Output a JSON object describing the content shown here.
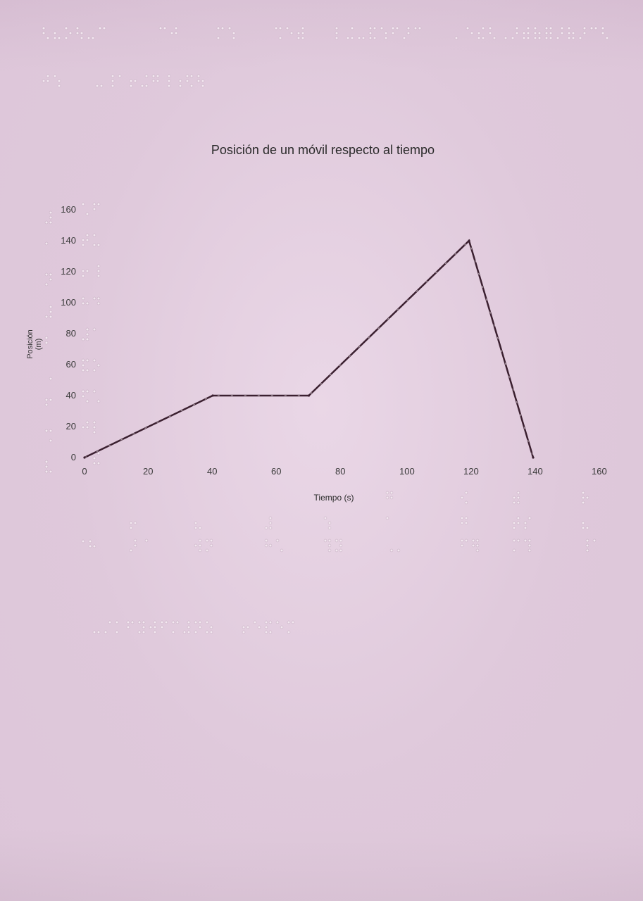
{
  "colors": {
    "paper": "#ddc6d9",
    "line": "#3b2030",
    "text": "#2a2a2a",
    "braille_dot": "#f4e8f1"
  },
  "chart_data": {
    "type": "line",
    "title": "Posición de un móvil respecto al tiempo",
    "xlabel": "Tiempo (s)",
    "ylabel": "Posición (m)",
    "xlim": [
      0,
      160
    ],
    "ylim": [
      0,
      160
    ],
    "x_ticks": [
      "0",
      "20",
      "40",
      "60",
      "80",
      "100",
      "120",
      "140",
      "160"
    ],
    "y_ticks": [
      "0",
      "20",
      "40",
      "60",
      "80",
      "100",
      "120",
      "140",
      "160"
    ],
    "grid": false,
    "legend": "none",
    "series": [
      {
        "x": [
          0,
          40,
          70,
          120,
          140
        ],
        "y": [
          0,
          40,
          40,
          140,
          0
        ]
      }
    ]
  }
}
